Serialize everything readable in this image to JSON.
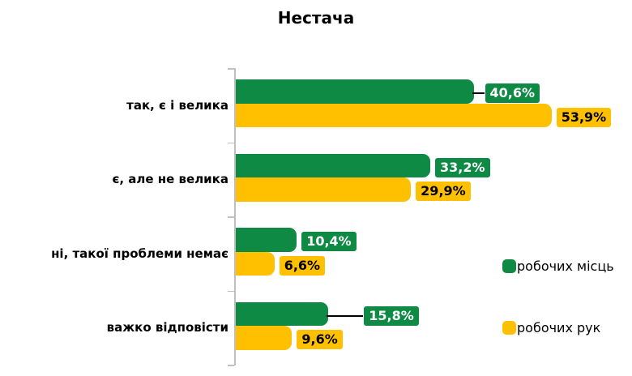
{
  "chart_data": {
    "type": "bar",
    "orientation": "horizontal",
    "title": "Нестача",
    "categories": [
      "так, є і велика",
      "є, але не велика",
      "ні, такої проблеми немає",
      "важко відповісти"
    ],
    "series": [
      {
        "name": "робочих місць",
        "color": "#0E8A44",
        "label_text_color": "#FFFFFF",
        "values": [
          40.6,
          33.2,
          10.4,
          15.8
        ],
        "value_labels": [
          "40,6%",
          "33,2%",
          "10,4%",
          "15,8%"
        ],
        "callout_gaps": [
          13,
          0,
          0,
          43
        ]
      },
      {
        "name": "робочих рук",
        "color": "#FFC000",
        "label_text_color": "#000000",
        "values": [
          53.9,
          29.9,
          6.6,
          9.6
        ],
        "value_labels": [
          "53,9%",
          "29,9%",
          "6,6%",
          "9,6%"
        ],
        "callout_gaps": [
          0,
          0,
          0,
          0
        ]
      }
    ],
    "xlim": [
      0,
      60
    ],
    "axis_color": "#BFBFBF",
    "leader_line_color": "#000000",
    "background": "#FFFFFF",
    "legend_position": "right",
    "grid": false
  }
}
